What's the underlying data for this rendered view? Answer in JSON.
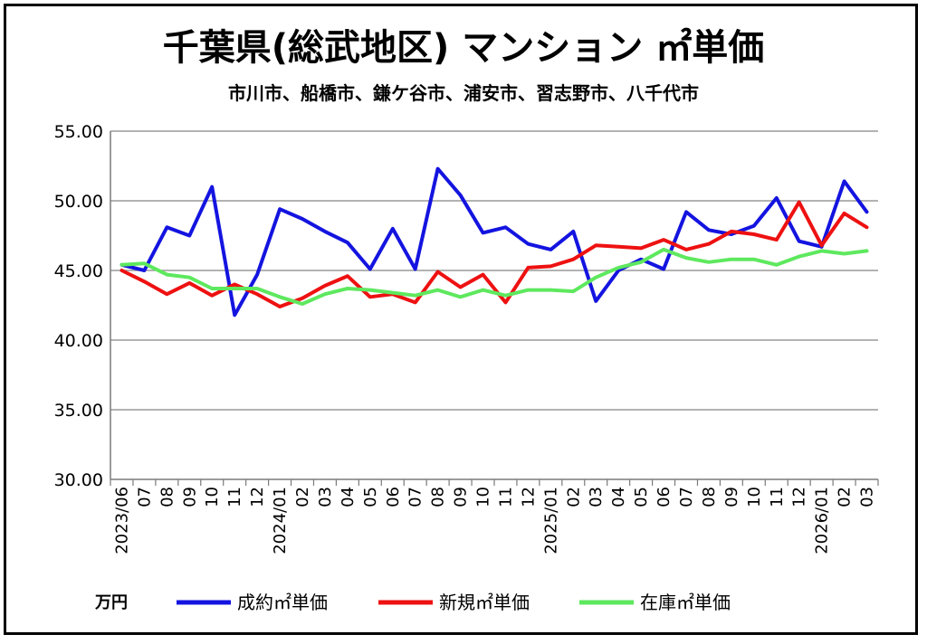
{
  "chart_data": {
    "type": "line",
    "title": "千葉県(総武地区) マンション ㎡単価",
    "subtitle": "市川市、船橋市、鎌ケ谷市、浦安市、習志野市、八千代市",
    "unit_label": "万円",
    "ylim": [
      30,
      55
    ],
    "yticks": [
      "55.00",
      "50.00",
      "45.00",
      "40.00",
      "35.00",
      "30.00"
    ],
    "ytick_values": [
      55,
      50,
      45,
      40,
      35,
      30
    ],
    "x": [
      "2023/06",
      "07",
      "08",
      "09",
      "10",
      "11",
      "12",
      "2024/01",
      "02",
      "03",
      "04",
      "05",
      "06",
      "07",
      "08",
      "09",
      "10",
      "11",
      "12",
      "2025/01",
      "02",
      "03",
      "04",
      "05",
      "06",
      "07",
      "08",
      "09",
      "10",
      "11",
      "12",
      "2026/01",
      "02",
      "03"
    ],
    "series": [
      {
        "name": "成約㎡単価",
        "color": "#1414e0",
        "values": [
          45.4,
          45.0,
          48.1,
          47.5,
          51.0,
          41.8,
          44.7,
          49.4,
          48.7,
          47.8,
          47.0,
          45.1,
          48.0,
          45.1,
          52.3,
          50.4,
          47.7,
          48.1,
          46.9,
          46.5,
          47.8,
          42.8,
          45.0,
          45.8,
          45.1,
          49.2,
          47.9,
          47.6,
          48.2,
          50.2,
          47.1,
          46.7,
          51.4,
          49.2
        ]
      },
      {
        "name": "新規㎡単価",
        "color": "#ee1111",
        "values": [
          45.0,
          44.2,
          43.3,
          44.1,
          43.2,
          44.0,
          43.3,
          42.4,
          43.0,
          43.9,
          44.6,
          43.1,
          43.3,
          42.7,
          44.9,
          43.8,
          44.7,
          42.7,
          45.2,
          45.3,
          45.8,
          46.8,
          46.7,
          46.6,
          47.2,
          46.5,
          46.9,
          47.8,
          47.6,
          47.2,
          49.9,
          46.8,
          49.1,
          48.1
        ]
      },
      {
        "name": "在庫㎡単価",
        "color": "#5ee85e",
        "values": [
          45.4,
          45.5,
          44.7,
          44.5,
          43.7,
          43.7,
          43.7,
          43.1,
          42.6,
          43.3,
          43.7,
          43.6,
          43.4,
          43.2,
          43.6,
          43.1,
          43.6,
          43.2,
          43.6,
          43.6,
          43.5,
          44.5,
          45.2,
          45.6,
          46.5,
          45.9,
          45.6,
          45.8,
          45.8,
          45.4,
          46.0,
          46.4,
          46.2,
          46.4
        ]
      }
    ]
  }
}
